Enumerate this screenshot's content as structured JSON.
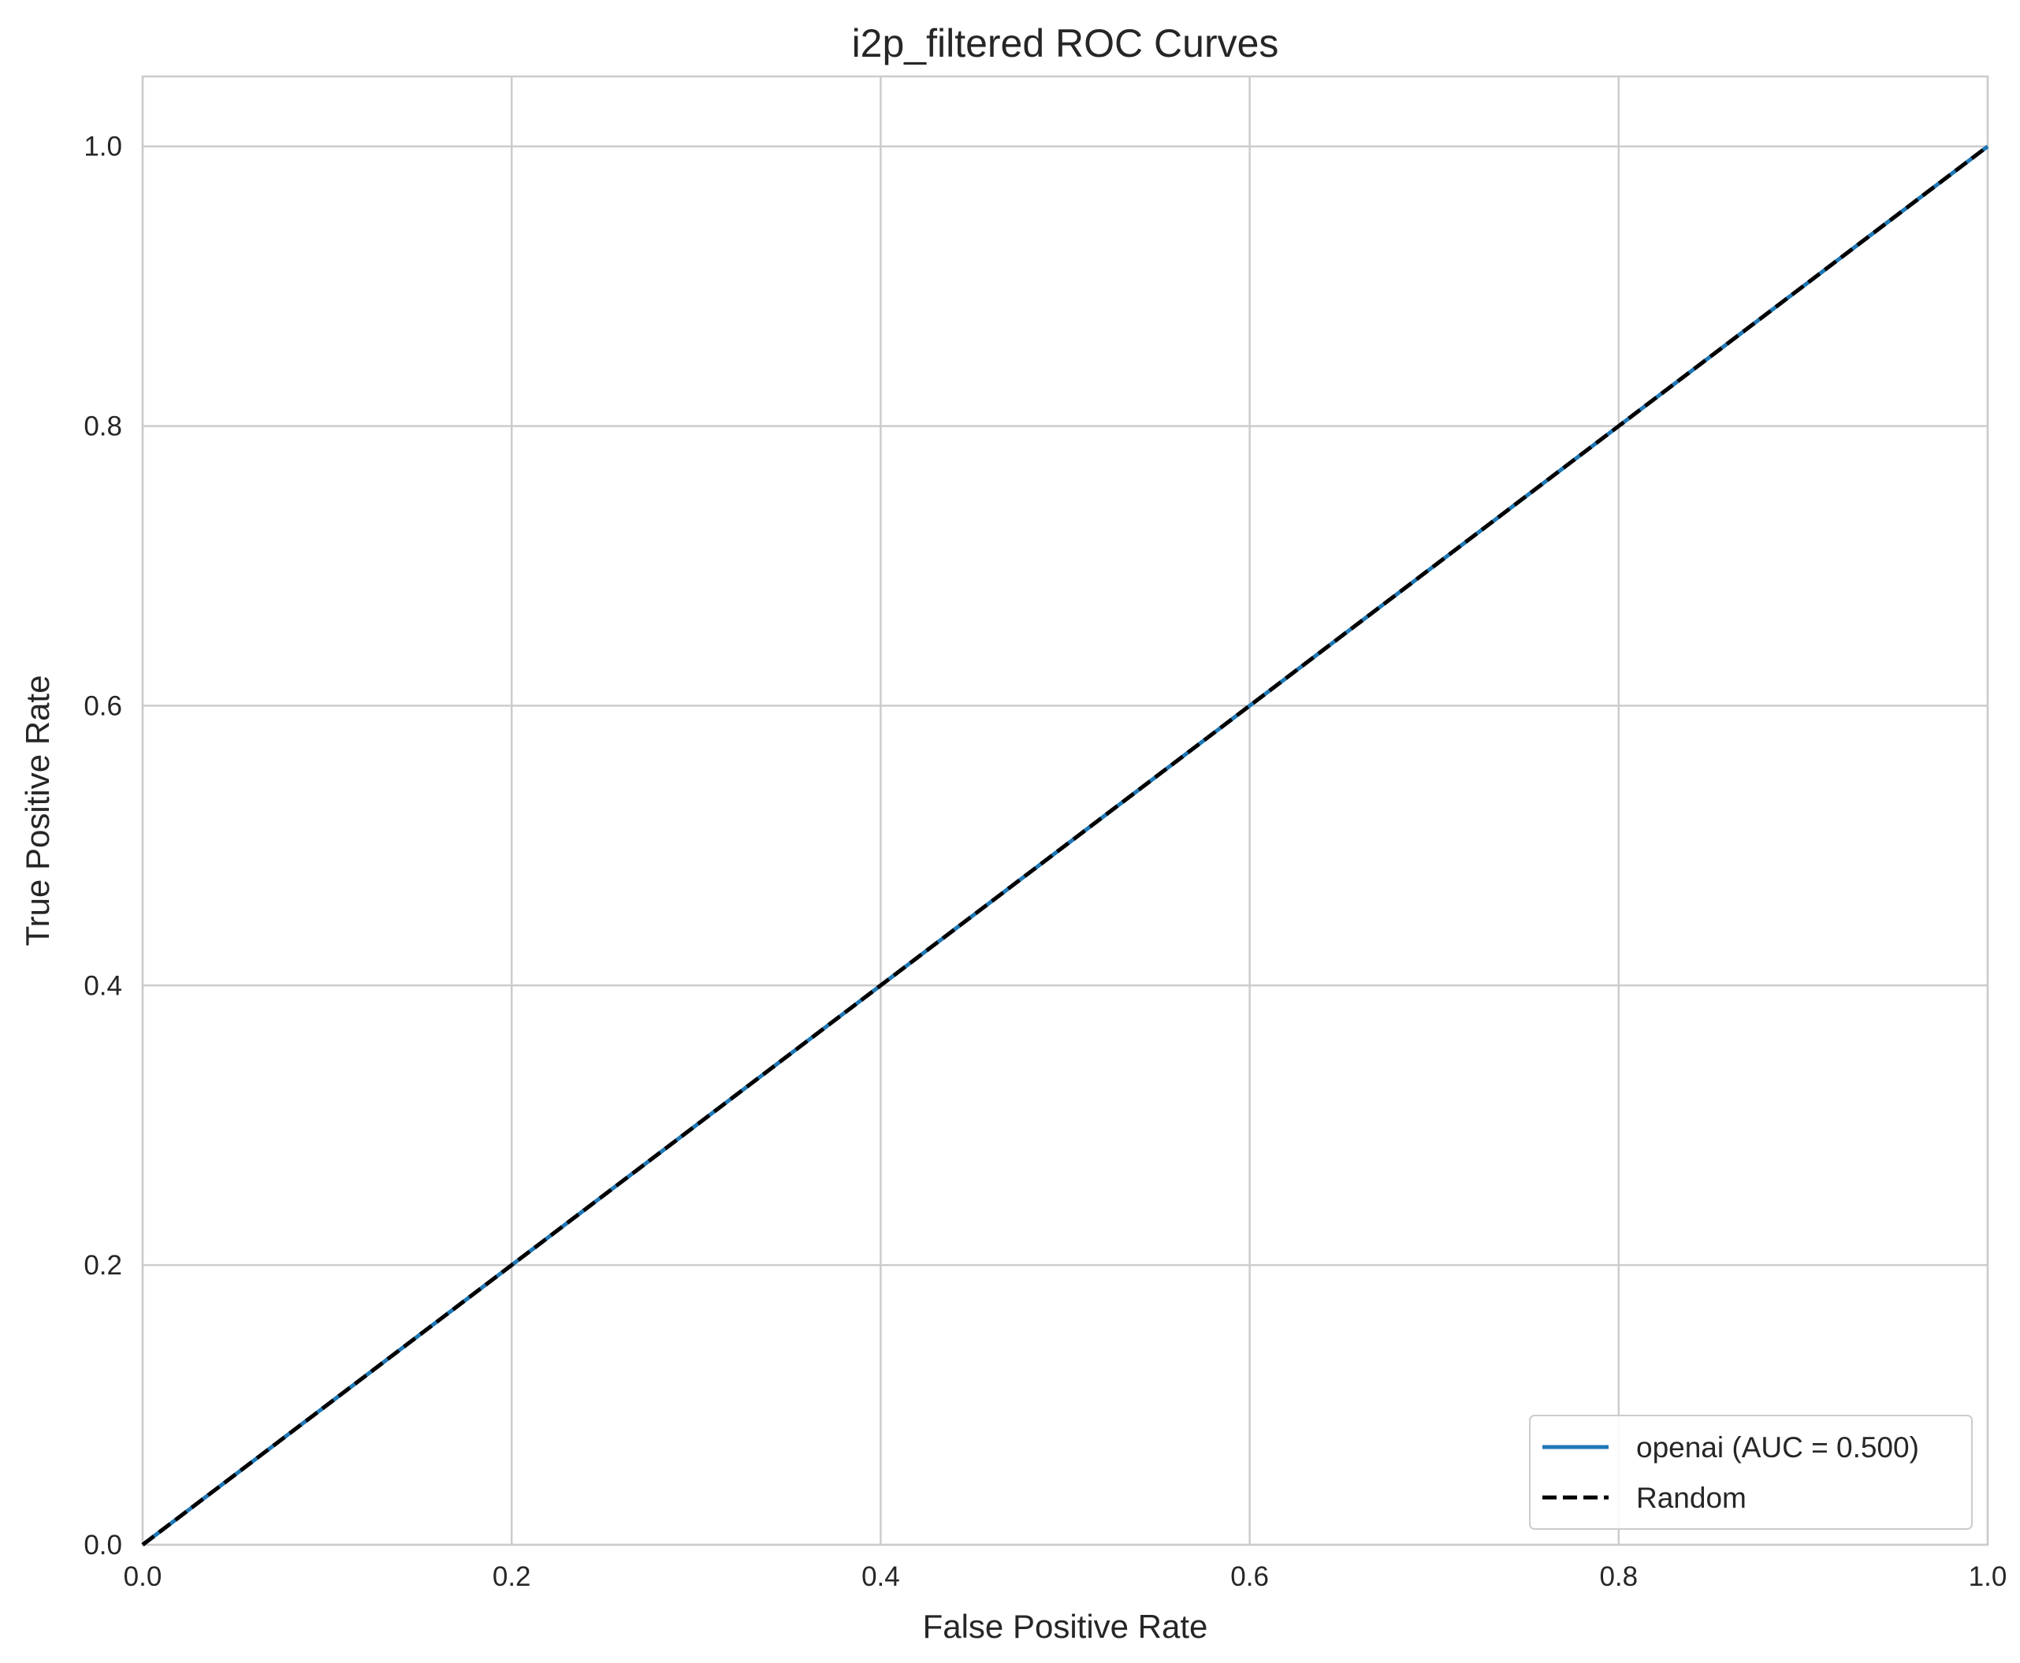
{
  "chart_data": {
    "type": "line",
    "title": "i2p_filtered ROC Curves",
    "xlabel": "False Positive Rate",
    "ylabel": "True Positive Rate",
    "xlim": [
      0.0,
      1.0
    ],
    "ylim": [
      0.0,
      1.05
    ],
    "xticks": [
      "0.0",
      "0.2",
      "0.4",
      "0.6",
      "0.8",
      "1.0"
    ],
    "yticks": [
      "0.0",
      "0.2",
      "0.4",
      "0.6",
      "0.8",
      "1.0"
    ],
    "grid": true,
    "legend_position": "lower-right",
    "series": [
      {
        "name": "openai (AUC = 0.500)",
        "color": "#1f77b4",
        "style": "solid",
        "x": [
          0.0,
          1.0
        ],
        "y": [
          0.0,
          1.0
        ]
      },
      {
        "name": "Random",
        "color": "#000000",
        "style": "dashed",
        "x": [
          0.0,
          1.0
        ],
        "y": [
          0.0,
          1.0
        ]
      }
    ]
  }
}
